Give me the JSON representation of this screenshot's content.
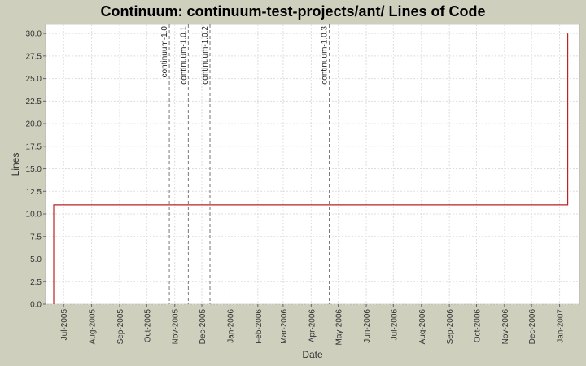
{
  "chart_data": {
    "type": "line",
    "title": "Continuum: continuum-test-projects/ant/ Lines of Code",
    "xlabel": "Date",
    "ylabel": "Lines",
    "x_ticks": [
      "Jul-2005",
      "Aug-2005",
      "Sep-2005",
      "Oct-2005",
      "Nov-2005",
      "Dec-2005",
      "Jan-2006",
      "Feb-2006",
      "Mar-2006",
      "Apr-2006",
      "May-2006",
      "Jun-2006",
      "Jul-2006",
      "Aug-2006",
      "Sep-2006",
      "Oct-2006",
      "Nov-2006",
      "Dec-2006",
      "Jan-2007"
    ],
    "y_ticks": [
      "0.0",
      "2.5",
      "5.0",
      "7.5",
      "10.0",
      "12.5",
      "15.0",
      "17.5",
      "20.0",
      "22.5",
      "25.0",
      "27.5",
      "30.0"
    ],
    "ylim": [
      0,
      31
    ],
    "xlim": [
      "2005-06-11",
      "2007-01-23"
    ],
    "grid": true,
    "series": [
      {
        "color": "#bb2222",
        "step": true,
        "points": [
          {
            "x": "2005-06-20",
            "y": 0
          },
          {
            "x": "2005-06-20",
            "y": 11
          },
          {
            "x": "2007-01-10",
            "y": 11
          },
          {
            "x": "2007-01-10",
            "y": 30
          }
        ]
      }
    ],
    "markers": [
      {
        "label": "continuum-1.0",
        "x": "2005-10-26"
      },
      {
        "label": "continuum-1.0.1",
        "x": "2005-11-16"
      },
      {
        "label": "continuum-1.0.2",
        "x": "2005-12-10"
      },
      {
        "label": "continuum-1.0.3",
        "x": "2006-04-21"
      }
    ],
    "colors": {
      "background": "#cfcfbe",
      "plot_background": "#ffffff",
      "grid": "#dddddd",
      "marker_line": "#777777"
    }
  }
}
